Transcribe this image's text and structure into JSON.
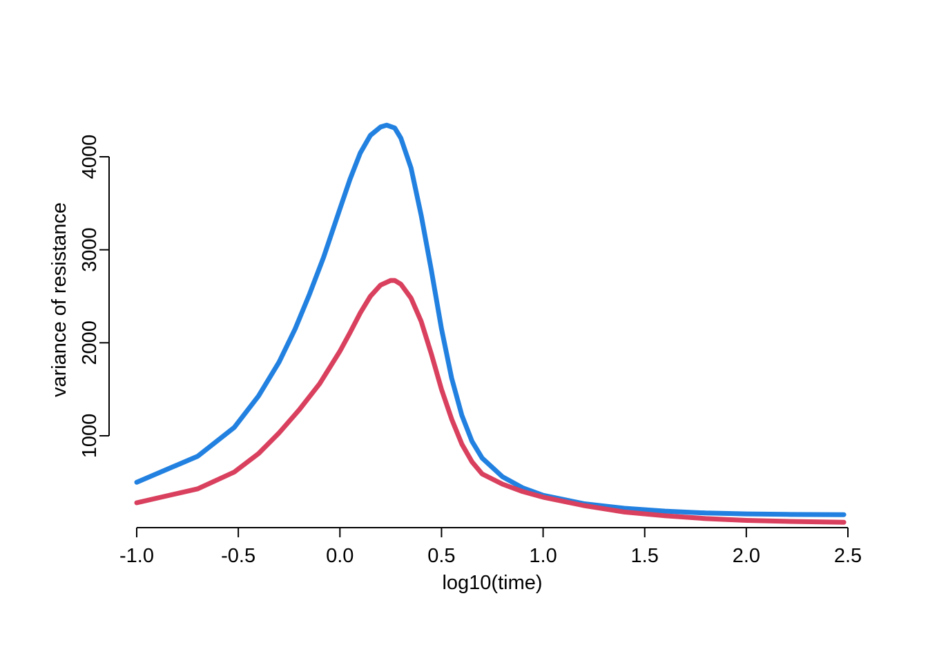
{
  "chart_data": {
    "type": "line",
    "title": "",
    "xlabel": "log10(time)",
    "ylabel": "variance of resistance",
    "xlim": [
      -1.0,
      2.5
    ],
    "ylim": [
      50,
      4400
    ],
    "x_ticks": [
      -1.0,
      -0.5,
      0.0,
      0.5,
      1.0,
      1.5,
      2.0,
      2.5
    ],
    "x_tick_labels": [
      "-1.0",
      "-0.5",
      "0.0",
      "0.5",
      "1.0",
      "1.5",
      "2.0",
      "2.5"
    ],
    "y_ticks": [
      1000,
      2000,
      3000,
      4000
    ],
    "y_tick_labels": [
      "1000",
      "2000",
      "3000",
      "4000"
    ],
    "grid": false,
    "legend": "none",
    "series": [
      {
        "color": "#2281E0",
        "x": [
          -1.0,
          -0.7,
          -0.52,
          -0.4,
          -0.3,
          -0.22,
          -0.15,
          -0.08,
          0.0,
          0.05,
          0.1,
          0.15,
          0.2,
          0.23,
          0.27,
          0.3,
          0.35,
          0.4,
          0.45,
          0.5,
          0.55,
          0.6,
          0.65,
          0.7,
          0.8,
          0.9,
          1.0,
          1.2,
          1.4,
          1.6,
          1.8,
          2.0,
          2.2,
          2.48
        ],
        "y": [
          500,
          780,
          1090,
          1430,
          1790,
          2150,
          2520,
          2920,
          3440,
          3760,
          4040,
          4230,
          4320,
          4340,
          4310,
          4200,
          3880,
          3370,
          2780,
          2150,
          1620,
          1220,
          940,
          760,
          560,
          440,
          360,
          270,
          220,
          190,
          170,
          160,
          155,
          152
        ]
      },
      {
        "color": "#D9405E",
        "x": [
          -1.0,
          -0.7,
          -0.52,
          -0.4,
          -0.3,
          -0.2,
          -0.1,
          0.0,
          0.05,
          0.1,
          0.15,
          0.2,
          0.25,
          0.27,
          0.3,
          0.35,
          0.4,
          0.45,
          0.5,
          0.55,
          0.6,
          0.65,
          0.7,
          0.8,
          0.9,
          1.0,
          1.2,
          1.4,
          1.6,
          1.8,
          2.0,
          2.2,
          2.48
        ],
        "y": [
          280,
          430,
          610,
          810,
          1030,
          1280,
          1560,
          1910,
          2110,
          2320,
          2500,
          2620,
          2670,
          2670,
          2630,
          2480,
          2230,
          1880,
          1500,
          1180,
          910,
          720,
          590,
          480,
          400,
          340,
          250,
          180,
          140,
          110,
          90,
          80,
          70
        ]
      }
    ]
  }
}
